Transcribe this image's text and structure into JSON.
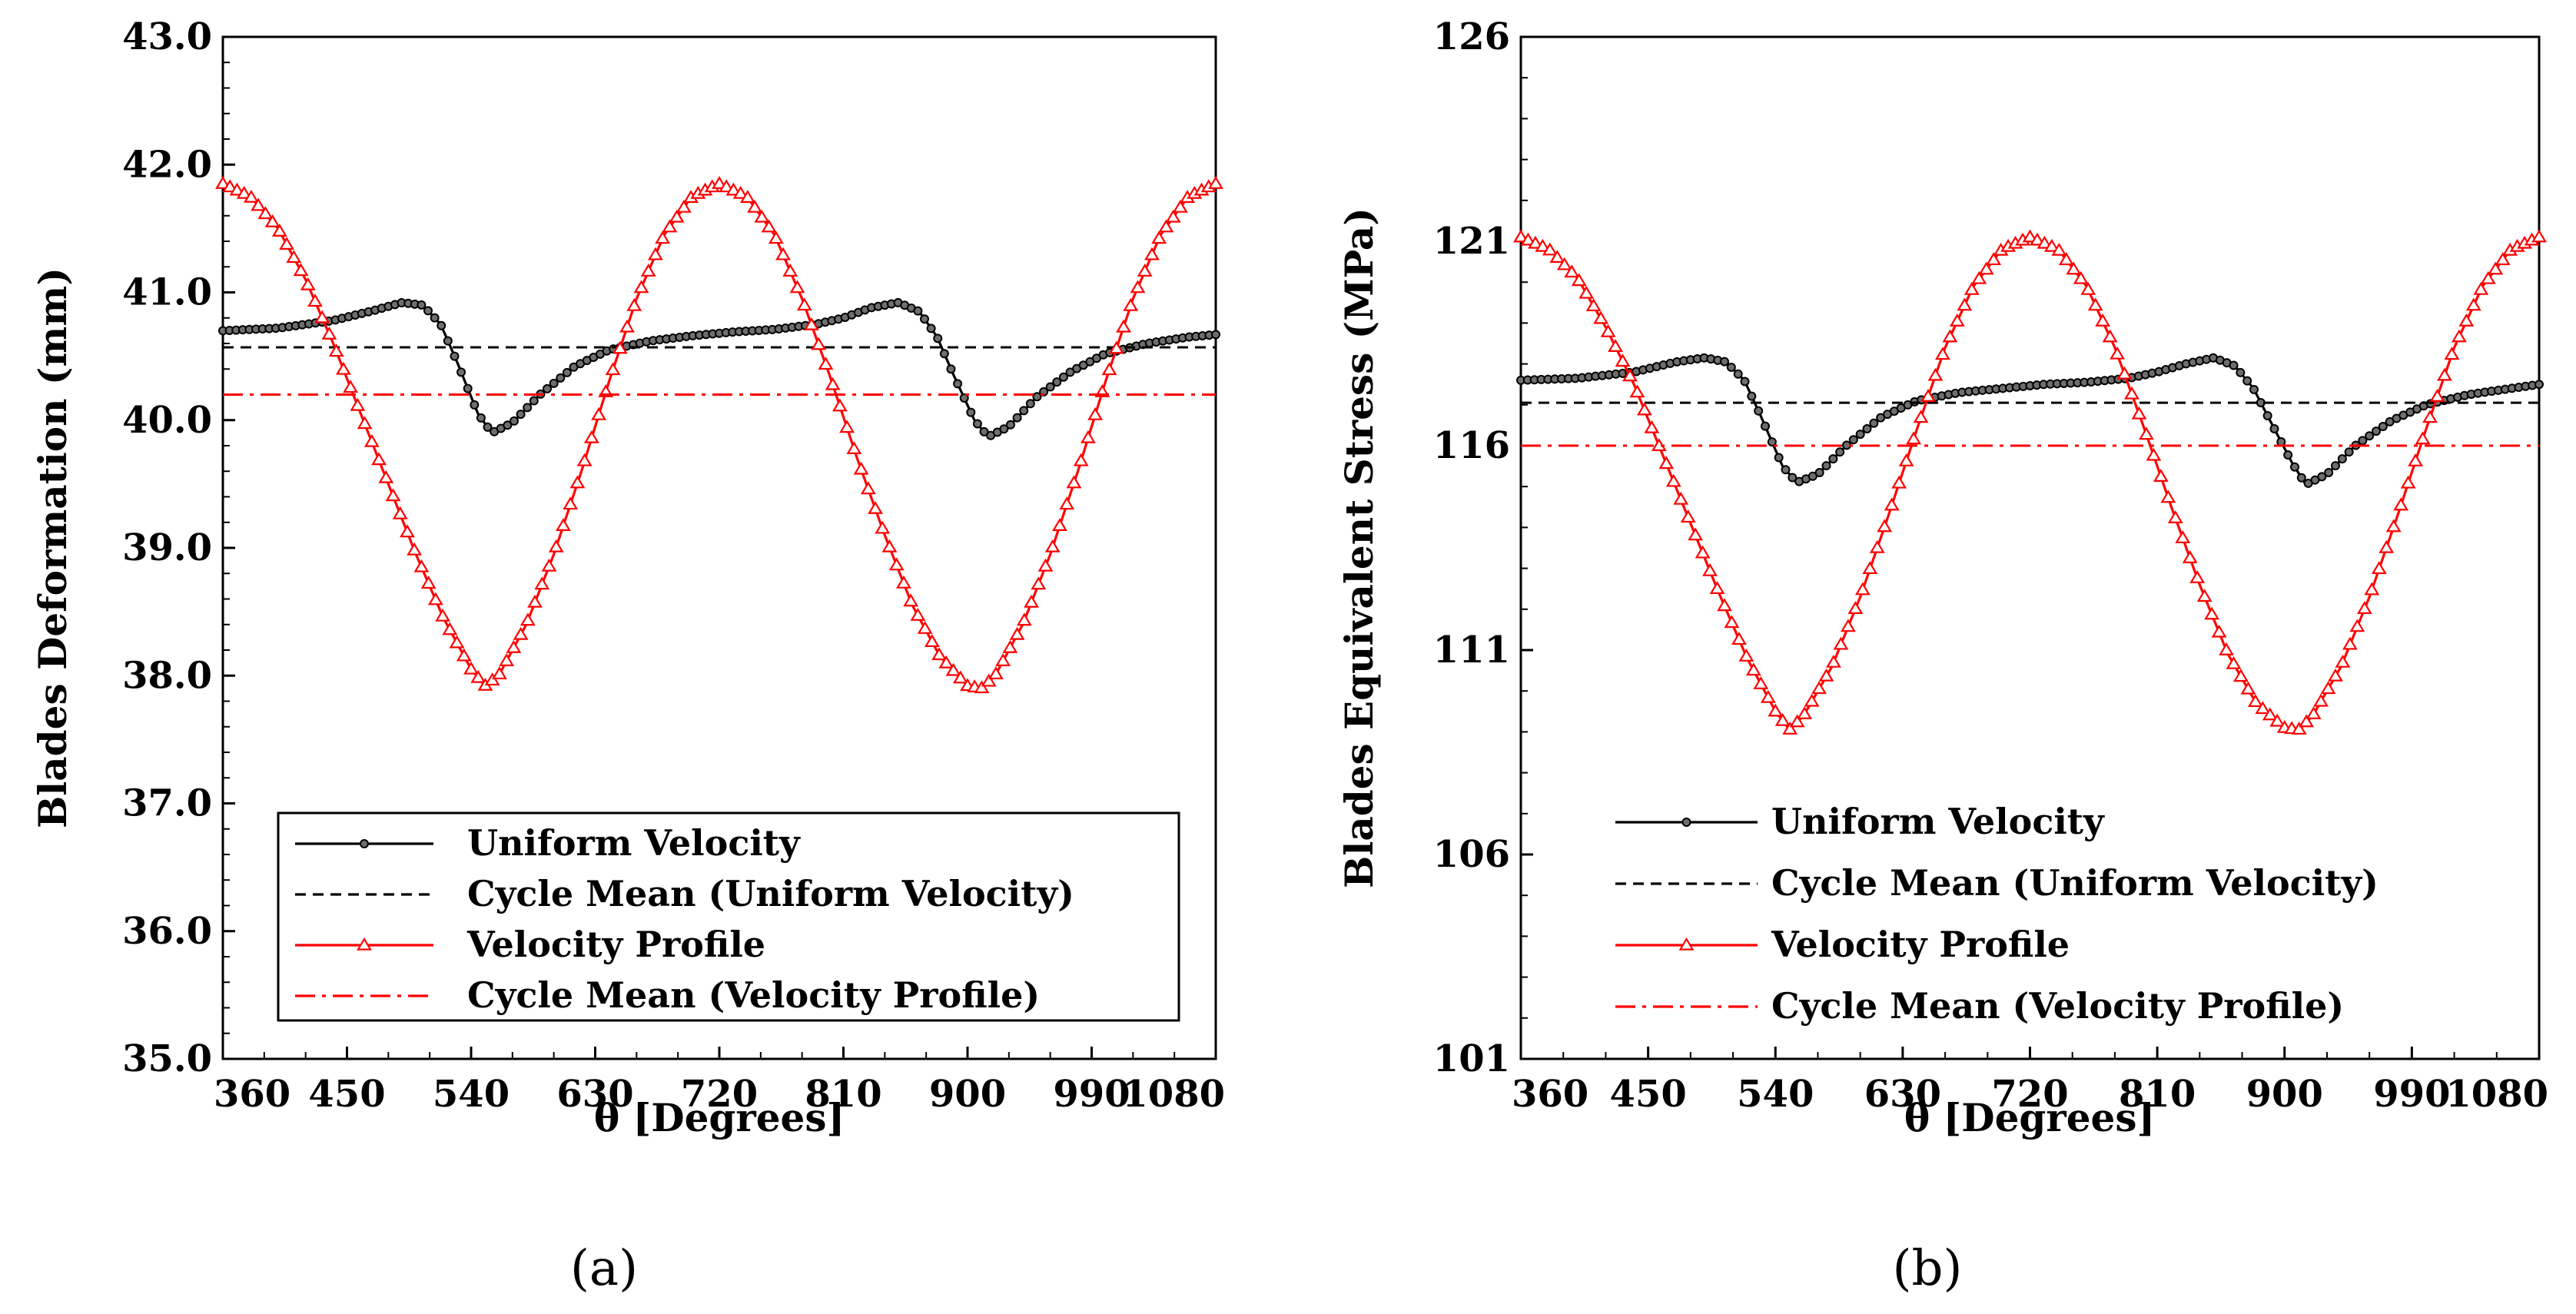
{
  "chart_data": [
    {
      "type": "line",
      "panel_label": "(a)",
      "xlabel": "θ [Degrees]",
      "ylabel": "Blades Deformation (mm)",
      "xlim": [
        360,
        1080
      ],
      "ylim": [
        35.0,
        43.0
      ],
      "xticks": [
        "360",
        "450",
        "540",
        "630",
        "720",
        "810",
        "900",
        "990",
        "1080"
      ],
      "yticks": [
        "35.0",
        "36.0",
        "37.0",
        "38.0",
        "39.0",
        "40.0",
        "41.0",
        "42.0",
        "43.0"
      ],
      "legend_position": "bottom",
      "legend_boxed": true,
      "series": [
        {
          "name": "Uniform Velocity",
          "color": "#000000",
          "style": "solid",
          "marker": "circle",
          "x": [
            360,
            400,
            440,
            470,
            490,
            505,
            518,
            530,
            545,
            555,
            570,
            590,
            615,
            640,
            670,
            700,
            730,
            760,
            790,
            810,
            830,
            850,
            865,
            878,
            890,
            905,
            915,
            930,
            950,
            975,
            1000,
            1030,
            1060,
            1080
          ],
          "y": [
            40.7,
            40.72,
            40.78,
            40.86,
            40.92,
            40.9,
            40.75,
            40.45,
            40.05,
            39.9,
            39.98,
            40.2,
            40.42,
            40.55,
            40.62,
            40.66,
            40.69,
            40.71,
            40.75,
            40.8,
            40.88,
            40.92,
            40.85,
            40.65,
            40.35,
            40.0,
            39.87,
            39.95,
            40.18,
            40.38,
            40.52,
            40.6,
            40.65,
            40.67
          ]
        },
        {
          "name": "Cycle Mean (Uniform Velocity)",
          "color": "#000000",
          "style": "dashed",
          "marker": "none",
          "x": [
            360,
            1080
          ],
          "y": [
            40.57,
            40.57
          ]
        },
        {
          "name": "Velocity Profile",
          "color": "#ff0000",
          "style": "solid",
          "marker": "triangle",
          "x": [
            360,
            380,
            400,
            420,
            440,
            460,
            480,
            500,
            520,
            540,
            550,
            560,
            580,
            600,
            620,
            640,
            660,
            680,
            700,
            720,
            740,
            760,
            780,
            800,
            820,
            840,
            860,
            880,
            900,
            910,
            920,
            940,
            960,
            980,
            1000,
            1020,
            1040,
            1060,
            1080
          ],
          "y": [
            41.85,
            41.75,
            41.5,
            41.1,
            40.6,
            40.05,
            39.5,
            38.95,
            38.45,
            38.05,
            37.92,
            38.0,
            38.4,
            38.95,
            39.6,
            40.3,
            40.95,
            41.45,
            41.75,
            41.85,
            41.75,
            41.45,
            40.95,
            40.35,
            39.7,
            39.1,
            38.55,
            38.15,
            37.92,
            37.9,
            38.0,
            38.4,
            38.95,
            39.6,
            40.3,
            40.95,
            41.45,
            41.75,
            41.85
          ]
        },
        {
          "name": "Cycle Mean (Velocity Profile)",
          "color": "#ff0000",
          "style": "dashdot",
          "marker": "none",
          "x": [
            360,
            1080
          ],
          "y": [
            40.2,
            40.2
          ]
        }
      ]
    },
    {
      "type": "line",
      "panel_label": "(b)",
      "xlabel": "θ [Degrees]",
      "ylabel": "Blades Equivalent Stress (MPa)",
      "xlim": [
        360,
        1080
      ],
      "ylim": [
        101,
        126
      ],
      "xticks": [
        "360",
        "450",
        "540",
        "630",
        "720",
        "810",
        "900",
        "990",
        "1080"
      ],
      "yticks": [
        "101",
        "106",
        "111",
        "116",
        "121",
        "126"
      ],
      "legend_position": "bottom",
      "legend_boxed": false,
      "series": [
        {
          "name": "Uniform Velocity",
          "color": "#000000",
          "style": "solid",
          "marker": "circle",
          "x": [
            360,
            400,
            440,
            470,
            490,
            505,
            518,
            530,
            545,
            555,
            570,
            590,
            615,
            640,
            670,
            700,
            730,
            760,
            790,
            810,
            830,
            850,
            865,
            878,
            890,
            905,
            915,
            930,
            950,
            975,
            1000,
            1030,
            1060,
            1080
          ],
          "y": [
            117.6,
            117.65,
            117.8,
            118.05,
            118.15,
            118.05,
            117.6,
            116.7,
            115.5,
            115.1,
            115.3,
            116.0,
            116.7,
            117.1,
            117.3,
            117.4,
            117.5,
            117.55,
            117.65,
            117.8,
            118.0,
            118.15,
            117.95,
            117.4,
            116.6,
            115.6,
            115.05,
            115.3,
            116.0,
            116.6,
            117.0,
            117.25,
            117.4,
            117.5
          ]
        },
        {
          "name": "Cycle Mean (Uniform Velocity)",
          "color": "#000000",
          "style": "dashed",
          "marker": "none",
          "x": [
            360,
            1080
          ],
          "y": [
            117.05,
            117.05
          ]
        },
        {
          "name": "Velocity Profile",
          "color": "#ff0000",
          "style": "solid",
          "marker": "triangle",
          "x": [
            360,
            380,
            400,
            420,
            440,
            460,
            480,
            500,
            520,
            540,
            550,
            560,
            580,
            600,
            620,
            640,
            660,
            680,
            700,
            720,
            740,
            760,
            780,
            800,
            820,
            840,
            860,
            880,
            900,
            910,
            920,
            940,
            960,
            980,
            1000,
            1020,
            1040,
            1060,
            1080
          ],
          "y": [
            121.1,
            120.8,
            120.1,
            118.9,
            117.5,
            115.8,
            114.1,
            112.4,
            110.8,
            109.5,
            109.05,
            109.4,
            110.6,
            112.3,
            114.3,
            116.4,
            118.4,
            119.9,
            120.8,
            121.1,
            120.8,
            119.9,
            118.4,
            116.5,
            114.5,
            112.6,
            110.9,
            109.7,
            109.1,
            109.05,
            109.4,
            110.6,
            112.3,
            114.3,
            116.4,
            118.4,
            119.9,
            120.8,
            121.1
          ]
        },
        {
          "name": "Cycle Mean (Velocity Profile)",
          "color": "#ff0000",
          "style": "dashdot",
          "marker": "none",
          "x": [
            360,
            1080
          ],
          "y": [
            116.0,
            116.0
          ]
        }
      ]
    }
  ]
}
